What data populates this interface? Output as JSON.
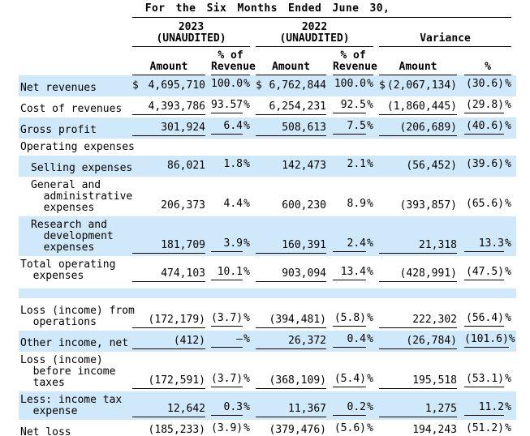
{
  "table": {
    "title": "For the Six Months Ended June 30,",
    "groups": [
      {
        "line1": "2023",
        "line2": "(UNAUDITED)"
      },
      {
        "line1": "2022",
        "line2": "(UNAUDITED)"
      },
      {
        "line1": "",
        "line2": "Variance"
      }
    ],
    "columns": [
      {
        "h1": "",
        "h2": "Amount"
      },
      {
        "h1": "% of",
        "h2": "Revenue"
      },
      {
        "h1": "",
        "h2": "Amount"
      },
      {
        "h1": "% of",
        "h2": "Revenue"
      },
      {
        "h1": "",
        "h2": "Amount"
      },
      {
        "h1": "",
        "h2": "%"
      }
    ],
    "rows": [
      {
        "label": "Net revenues",
        "d1": "$",
        "a1": "4,695,710",
        "p1": "100.0",
        "s1": "%",
        "d2": "$",
        "a2": "6,762,844",
        "p2": "100.0",
        "s2": "%",
        "d3": "$",
        "a3": "(2,067,134)",
        "p3": "(30.6)",
        "s3": "%"
      },
      {
        "label": "Cost of revenues",
        "d1": "",
        "a1": "4,393,786",
        "p1": "93.57",
        "s1": "%",
        "d2": "",
        "a2": "6,254,231",
        "p2": "92.5",
        "s2": "%",
        "d3": "",
        "a3": "(1,860,445)",
        "p3": "(29.8)",
        "s3": "%"
      },
      {
        "label": "Gross profit",
        "d1": "",
        "a1": "301,924",
        "p1": "6.4",
        "s1": "%",
        "d2": "",
        "a2": "508,613",
        "p2": "7.5",
        "s2": "%",
        "d3": "",
        "a3": "(206,689)",
        "p3": "(40.6)",
        "s3": "%"
      },
      {
        "label": "Operating expenses",
        "d1": "",
        "a1": "",
        "p1": "",
        "s1": "",
        "d2": "",
        "a2": "",
        "p2": "",
        "s2": "",
        "d3": "",
        "a3": "",
        "p3": "",
        "s3": ""
      },
      {
        "label": "Selling expenses",
        "d1": "",
        "a1": "86,021",
        "p1": "1.8",
        "s1": "%",
        "d2": "",
        "a2": "142,473",
        "p2": "2.1",
        "s2": "%",
        "d3": "",
        "a3": "(56,452)",
        "p3": "(39.6)",
        "s3": "%"
      },
      {
        "label": "General and\n  administrative\n  expenses",
        "d1": "",
        "a1": "206,373",
        "p1": "4.4",
        "s1": "%",
        "d2": "",
        "a2": "600,230",
        "p2": "8.9",
        "s2": "%",
        "d3": "",
        "a3": "(393,857)",
        "p3": "(65.6)",
        "s3": "%"
      },
      {
        "label": "Research and\n  development\n  expenses",
        "d1": "",
        "a1": "181,709",
        "p1": "3.9",
        "s1": "%",
        "d2": "",
        "a2": "160,391",
        "p2": "2.4",
        "s2": "%",
        "d3": "",
        "a3": "21,318",
        "p3": "13.3",
        "s3": "%"
      },
      {
        "label": "Total operating\n  expenses",
        "d1": "",
        "a1": "474,103",
        "p1": "10.1",
        "s1": "%",
        "d2": "",
        "a2": "903,094",
        "p2": "13.4",
        "s2": "%",
        "d3": "",
        "a3": "(428,991)",
        "p3": "(47.5)",
        "s3": "%"
      },
      {
        "label": "",
        "d1": "",
        "a1": "",
        "p1": "",
        "s1": "",
        "d2": "",
        "a2": "",
        "p2": "",
        "s2": "",
        "d3": "",
        "a3": "",
        "p3": "",
        "s3": ""
      },
      {
        "label": "Loss (income) from\n  operations",
        "d1": "",
        "a1": "(172,179)",
        "p1": "(3.7)",
        "s1": "%",
        "d2": "",
        "a2": "(394,481)",
        "p2": "(5.8)",
        "s2": "%",
        "d3": "",
        "a3": "222,302",
        "p3": "(56.4)",
        "s3": "%"
      },
      {
        "label": "Other income, net",
        "d1": "",
        "a1": "(412)",
        "p1": "—",
        "s1": "%",
        "d2": "",
        "a2": "26,372",
        "p2": "0.4",
        "s2": "%",
        "d3": "",
        "a3": "(26,784)",
        "p3": "(101.6)",
        "s3": "%"
      },
      {
        "label": "Loss (income)\n  before income\n  taxes",
        "d1": "",
        "a1": "(172,591)",
        "p1": "(3.7)",
        "s1": "%",
        "d2": "",
        "a2": "(368,109)",
        "p2": "(5.4)",
        "s2": "%",
        "d3": "",
        "a3": "195,518",
        "p3": "(53.1)",
        "s3": "%"
      },
      {
        "label": "Less: income tax\n  expense",
        "d1": "",
        "a1": "12,642",
        "p1": "0.3",
        "s1": "%",
        "d2": "",
        "a2": "11,367",
        "p2": "0.2",
        "s2": "%",
        "d3": "",
        "a3": "1,275",
        "p3": "11.2",
        "s3": "%"
      },
      {
        "label": "Net loss",
        "d1": "",
        "a1": "(185,233)",
        "p1": "(3.9)",
        "s1": "%",
        "d2": "",
        "a2": "(379,476)",
        "p2": "(5.6)",
        "s2": "%",
        "d3": "",
        "a3": "194,243",
        "p3": "(51.2)",
        "s3": "%"
      }
    ]
  },
  "colors": {
    "stripe_blue": "#cfe9fa",
    "text": "#000000",
    "rule": "#000000",
    "background": "#ffffff"
  }
}
